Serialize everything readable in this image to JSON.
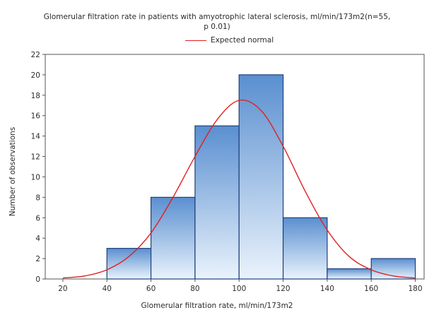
{
  "chart_data": {
    "type": "bar",
    "title_line1": "Glomerular filtration rate in patients with amyotrophic lateral sclerosis, ml/min/173m2(n=55,",
    "title_line2": "p 0.01)",
    "xlabel": "Glomerular filtration rate, ml/min/173m2",
    "ylabel": "Number of observations",
    "xlim": [
      12,
      184
    ],
    "ylim": [
      0,
      22
    ],
    "x_ticks": [
      20,
      40,
      60,
      80,
      100,
      120,
      140,
      160,
      180
    ],
    "y_ticks": [
      0,
      2,
      4,
      6,
      8,
      10,
      12,
      14,
      16,
      18,
      20,
      22
    ],
    "bins": [
      {
        "from": 40,
        "to": 60,
        "value": 3
      },
      {
        "from": 60,
        "to": 80,
        "value": 8
      },
      {
        "from": 80,
        "to": 100,
        "value": 15
      },
      {
        "from": 100,
        "to": 120,
        "value": 20
      },
      {
        "from": 120,
        "to": 140,
        "value": 6
      },
      {
        "from": 140,
        "to": 160,
        "value": 1
      },
      {
        "from": 160,
        "to": 180,
        "value": 2
      }
    ],
    "series": [
      {
        "name": "Expected normal",
        "type": "line",
        "color": "#e02020",
        "x": [
          20,
          30,
          40,
          50,
          60,
          70,
          80,
          90,
          100,
          110,
          120,
          130,
          140,
          150,
          160,
          170,
          180
        ],
        "values": [
          0.1,
          0.3,
          0.9,
          2.2,
          4.5,
          8.0,
          12.0,
          15.6,
          17.5,
          16.5,
          13.0,
          8.6,
          4.8,
          2.2,
          0.9,
          0.3,
          0.1
        ]
      }
    ],
    "legend": {
      "placement": "top-center",
      "entries": [
        "Expected normal"
      ]
    },
    "grid": false,
    "colors": {
      "bar_top": "#5a8fd0",
      "bar_bottom": "#eaf3fc",
      "bar_edge": "#1f3f7a",
      "curve": "#e02020"
    }
  }
}
